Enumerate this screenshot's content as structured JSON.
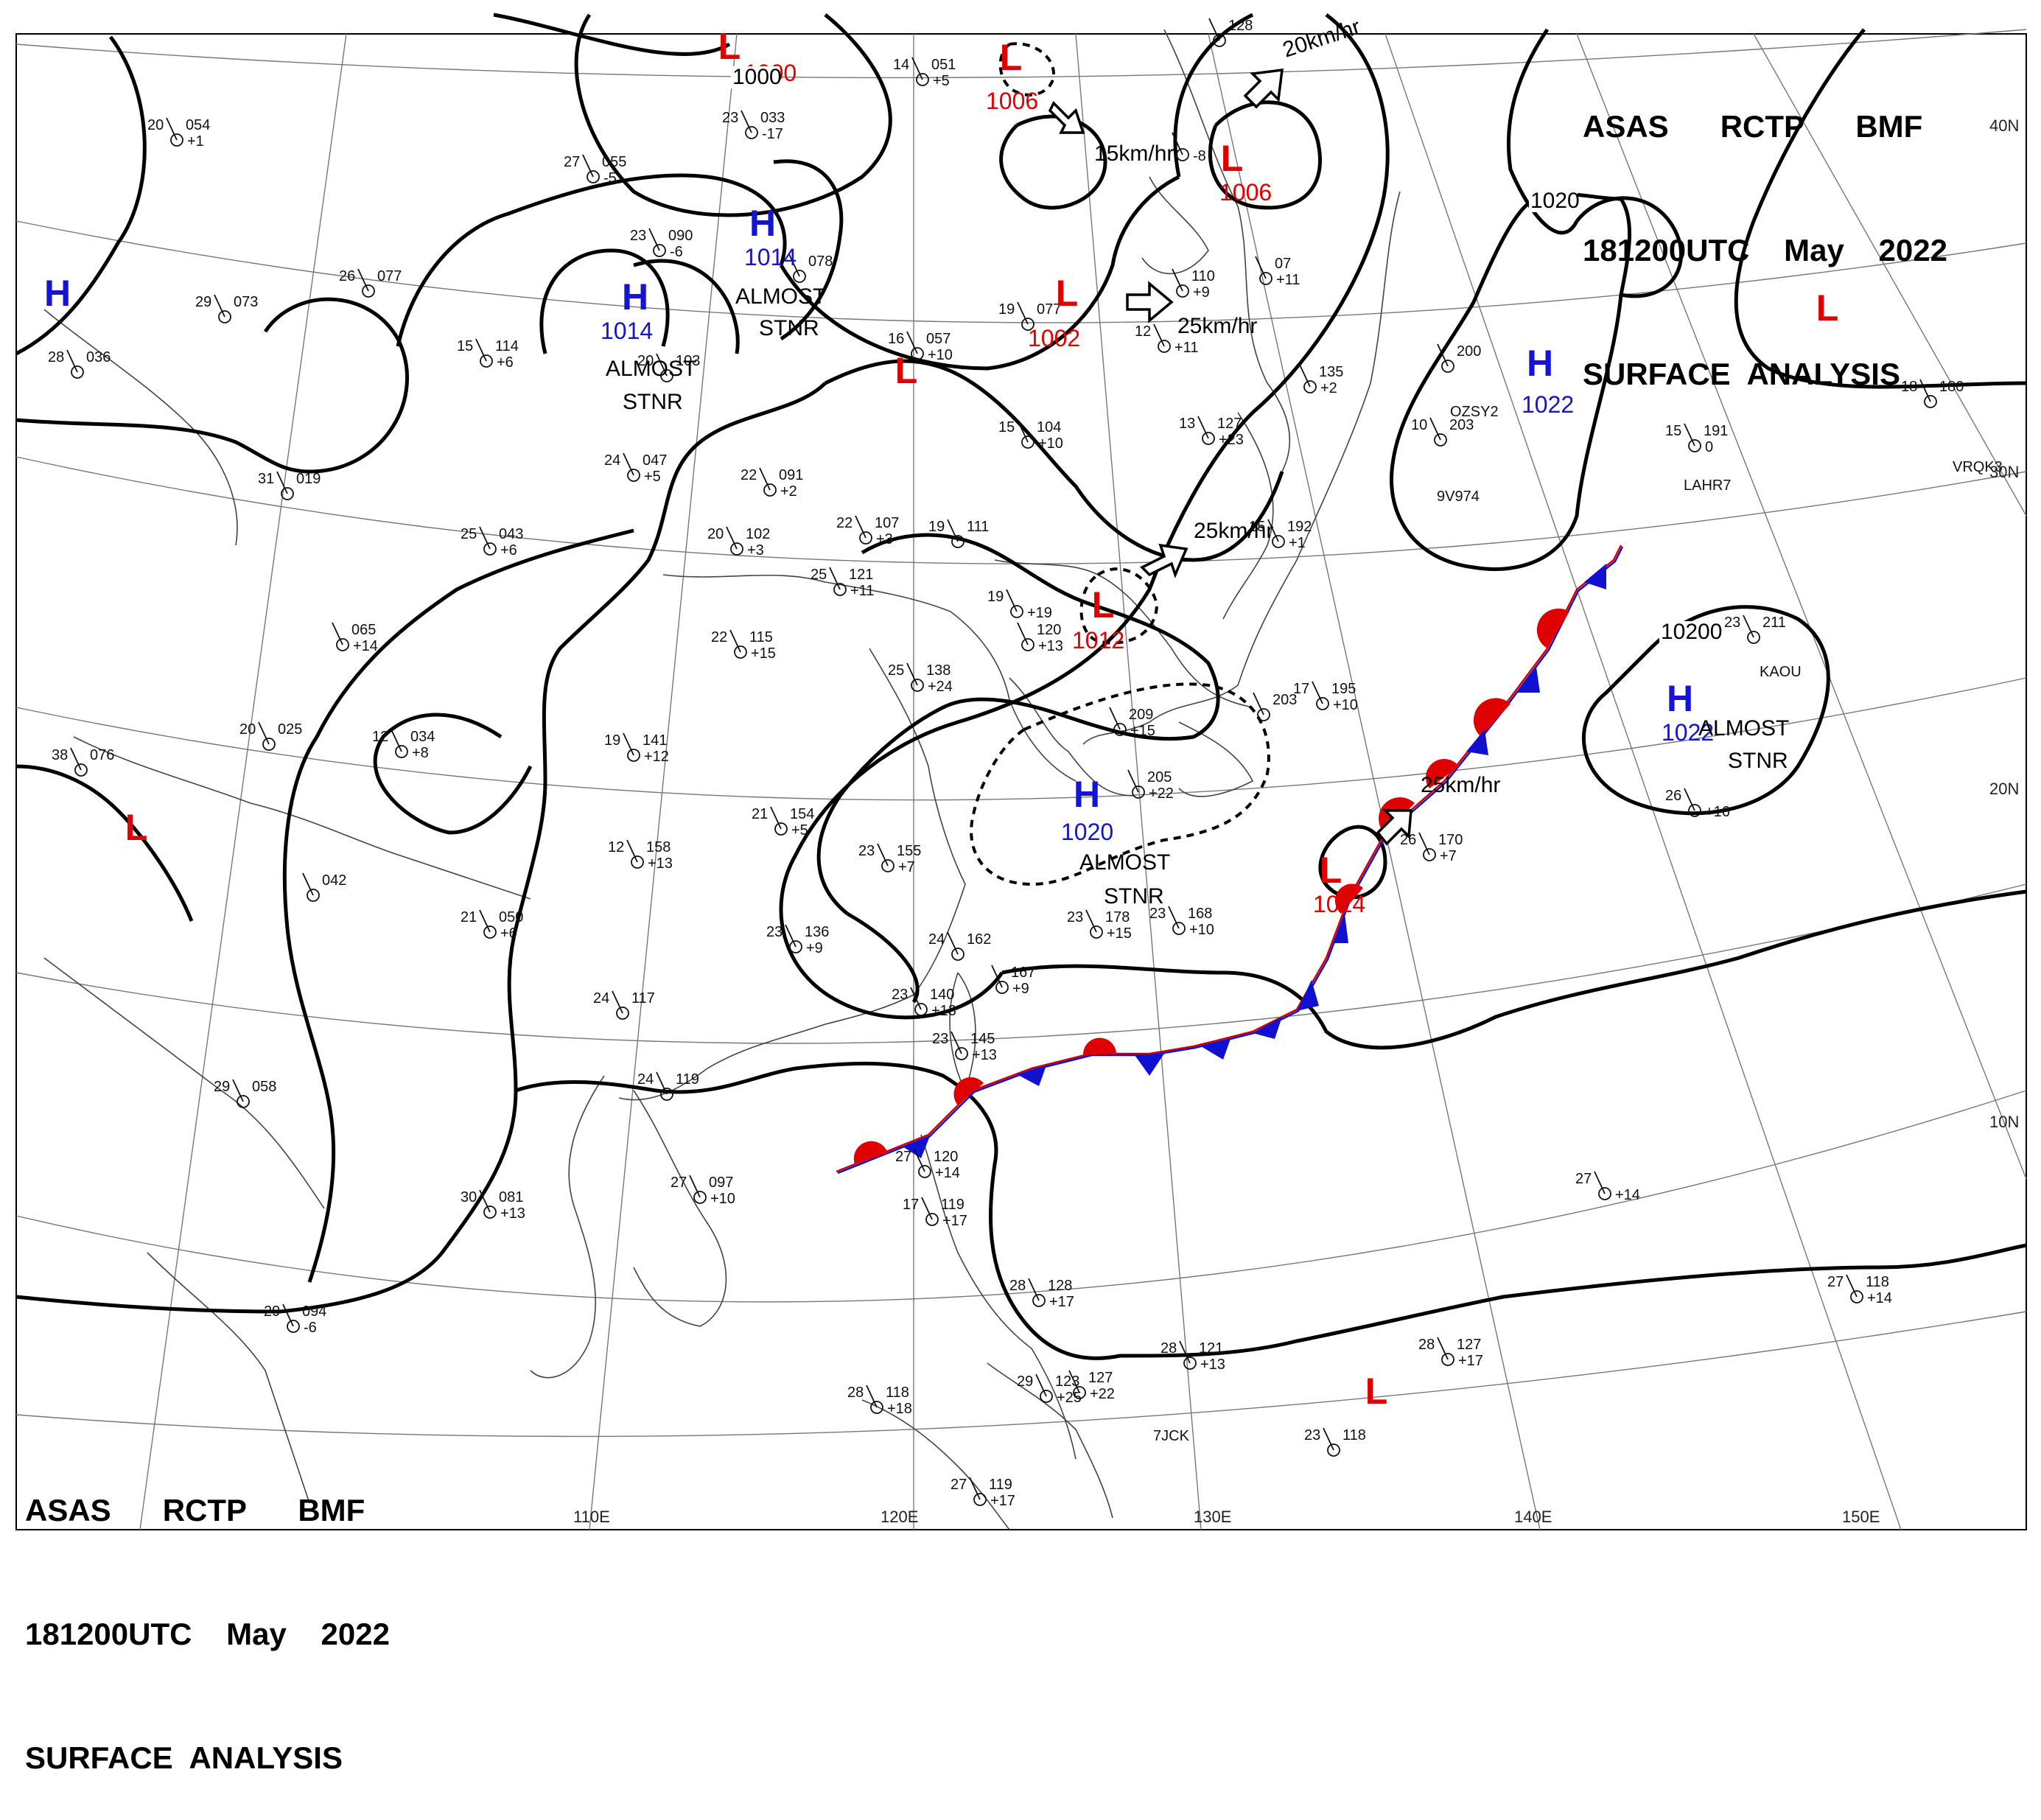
{
  "header": {
    "line1": [
      "ASAS",
      "RCTP",
      "BMF"
    ],
    "line2": [
      "181200UTC",
      "May",
      "2022"
    ],
    "line3": "SURFACE  ANALYSIS"
  },
  "lon_labels": [
    "110E",
    "120E",
    "130E",
    "140E",
    "150E"
  ],
  "lat_labels": [
    "40N",
    "30N",
    "20N",
    "10N"
  ],
  "pressure_systems": [
    {
      "type": "L",
      "value": "1000"
    },
    {
      "type": "L",
      "value": "1006"
    },
    {
      "type": "L",
      "value": "1006"
    },
    {
      "type": "H",
      "value": "1014"
    },
    {
      "type": "H",
      "value": "1014"
    },
    {
      "type": "L",
      "value": "1002"
    },
    {
      "type": "H",
      "value": "1022"
    },
    {
      "type": "L",
      "value": "1012"
    },
    {
      "type": "H",
      "value": "1020"
    },
    {
      "type": "H",
      "value": "1022"
    },
    {
      "type": "L",
      "value": "1014"
    },
    {
      "type": "L",
      "value": ""
    },
    {
      "type": "L",
      "value": ""
    },
    {
      "type": "L",
      "value": ""
    },
    {
      "type": "H",
      "value": ""
    },
    {
      "type": "L",
      "value": ""
    }
  ],
  "isobar_labels": [
    "1000",
    "1020",
    "10200"
  ],
  "motion_labels": [
    "20km/hr",
    "15km/hr",
    "25km/hr",
    "25km/hr",
    "25km/hr"
  ],
  "stationary_labels": [
    "ALMOST",
    "STNR"
  ],
  "stations": [
    {
      "t": "20",
      "p": "054",
      "d": "+1"
    },
    {
      "t": "23",
      "p": "033",
      "d": "-17"
    },
    {
      "t": "27",
      "p": "055",
      "d": "-5"
    },
    {
      "t": "14",
      "p": "051",
      "d": "+5"
    },
    {
      "t": "23",
      "p": "090",
      "d": "-6"
    },
    {
      "t": "",
      "p": "078",
      "d": ""
    },
    {
      "t": "26",
      "p": "077",
      "d": ""
    },
    {
      "t": "29",
      "p": "073",
      "d": ""
    },
    {
      "t": "28",
      "p": "036",
      "d": ""
    },
    {
      "t": "15",
      "p": "114",
      "d": "+6"
    },
    {
      "t": "20",
      "p": "103",
      "d": ""
    },
    {
      "t": "16",
      "p": "057",
      "d": "+10"
    },
    {
      "t": "19",
      "p": "077",
      "d": ""
    },
    {
      "t": "12",
      "p": "",
      "d": "+11"
    },
    {
      "t": "",
      "p": "110",
      "d": "+9"
    },
    {
      "t": "24",
      "p": "047",
      "d": "+5"
    },
    {
      "t": "31",
      "p": "019",
      "d": ""
    },
    {
      "t": "22",
      "p": "091",
      "d": "+2"
    },
    {
      "t": "15",
      "p": "104",
      "d": "+10"
    },
    {
      "t": "13",
      "p": "127",
      "d": "+23"
    },
    {
      "t": "25",
      "p": "043",
      "d": "+6"
    },
    {
      "t": "20",
      "p": "102",
      "d": "+3"
    },
    {
      "t": "22",
      "p": "107",
      "d": "+3"
    },
    {
      "t": "19",
      "p": "111",
      "d": ""
    },
    {
      "t": "15",
      "p": "192",
      "d": "+1"
    },
    {
      "t": "25",
      "p": "121",
      "d": "+11"
    },
    {
      "t": "19",
      "p": "",
      "d": "+19"
    },
    {
      "t": "",
      "p": "120",
      "d": "+13"
    },
    {
      "t": "",
      "p": "065",
      "d": "+14"
    },
    {
      "t": "22",
      "p": "115",
      "d": "+15"
    },
    {
      "t": "25",
      "p": "138",
      "d": "+24"
    },
    {
      "t": "12",
      "p": "034",
      "d": "+8"
    },
    {
      "t": "20",
      "p": "025",
      "d": ""
    },
    {
      "t": "19",
      "p": "141",
      "d": "+12"
    },
    {
      "t": "38",
      "p": "076",
      "d": ""
    },
    {
      "t": "21",
      "p": "154",
      "d": "+5"
    },
    {
      "t": "",
      "p": "209",
      "d": "+15"
    },
    {
      "t": "",
      "p": "205",
      "d": "+22"
    },
    {
      "t": "17",
      "p": "195",
      "d": "+10"
    },
    {
      "t": "",
      "p": "203",
      "d": ""
    },
    {
      "t": "12",
      "p": "158",
      "d": "+13"
    },
    {
      "t": "23",
      "p": "155",
      "d": "+7"
    },
    {
      "t": "",
      "p": "042",
      "d": ""
    },
    {
      "t": "21",
      "p": "050",
      "d": "+6"
    },
    {
      "t": "23",
      "p": "136",
      "d": "+9"
    },
    {
      "t": "24",
      "p": "162",
      "d": ""
    },
    {
      "t": "",
      "p": "167",
      "d": "+9"
    },
    {
      "t": "23",
      "p": "178",
      "d": "+15"
    },
    {
      "t": "23",
      "p": "168",
      "d": "+10"
    },
    {
      "t": "26",
      "p": "170",
      "d": "+7"
    },
    {
      "t": "24",
      "p": "117",
      "d": ""
    },
    {
      "t": "23",
      "p": "140",
      "d": "+13"
    },
    {
      "t": "23",
      "p": "145",
      "d": "+13"
    },
    {
      "t": "29",
      "p": "058",
      "d": ""
    },
    {
      "t": "24",
      "p": "119",
      "d": ""
    },
    {
      "t": "27",
      "p": "120",
      "d": "+14"
    },
    {
      "t": "27",
      "p": "097",
      "d": "+10"
    },
    {
      "t": "30",
      "p": "081",
      "d": "+13"
    },
    {
      "t": "17",
      "p": "119",
      "d": "+17"
    },
    {
      "t": "",
      "p": "200",
      "d": ""
    },
    {
      "t": "10",
      "p": "203",
      "d": ""
    },
    {
      "t": "15",
      "p": "191",
      "d": "0"
    },
    {
      "t": "18",
      "p": "180",
      "d": ""
    },
    {
      "t": "23",
      "p": "211",
      "d": ""
    },
    {
      "t": "26",
      "p": "",
      "d": "+16"
    },
    {
      "t": "27",
      "p": "",
      "d": "+14"
    },
    {
      "t": "27",
      "p": "118",
      "d": "+14"
    },
    {
      "t": "29",
      "p": "094",
      "d": "-6"
    },
    {
      "t": "28",
      "p": "128",
      "d": "+17"
    },
    {
      "t": "28",
      "p": "121",
      "d": "+13"
    },
    {
      "t": "28",
      "p": "127",
      "d": "+17"
    },
    {
      "t": "28",
      "p": "118",
      "d": "+18"
    },
    {
      "t": "29",
      "p": "123",
      "d": "+25"
    },
    {
      "t": "",
      "p": "127",
      "d": "+22"
    },
    {
      "t": "23",
      "p": "118",
      "d": ""
    },
    {
      "t": "27",
      "p": "119",
      "d": "+17"
    },
    {
      "t": "",
      "p": "135",
      "d": "+2"
    },
    {
      "t": "",
      "p": "128",
      "d": ""
    },
    {
      "t": "",
      "p": "",
      "d": "-8"
    },
    {
      "t": "",
      "p": "07",
      "d": "+11"
    }
  ],
  "ship_ids": [
    "OZSY2",
    "9V974",
    "LAHR7",
    "VRQK3",
    "KAOU",
    "7JCK"
  ],
  "colors": {
    "low": "#e00000",
    "high": "#1414d2",
    "warm_front": "#e00000",
    "cold_front": "#1010d0"
  }
}
